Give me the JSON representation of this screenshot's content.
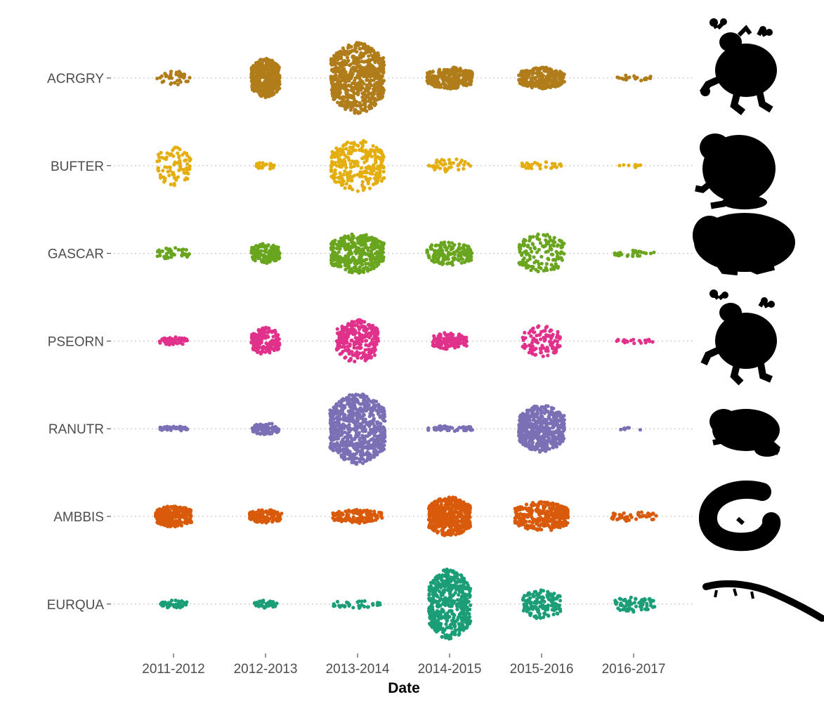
{
  "chart_data": {
    "type": "scatter",
    "subtype": "beeswarm",
    "xlabel": "Date",
    "ylabel": "",
    "title": "",
    "grid": "horizontal dotted guides per species",
    "legend": "none",
    "x_ticks": [
      "2011-2012",
      "2012-2013",
      "2013-2014",
      "2014-2015",
      "2015-2016",
      "2016-2017"
    ],
    "series": [
      {
        "label": "ACRGRY",
        "color": "#b07d1a",
        "icon": "frog-silhouette-icon",
        "clusters": [
          {
            "season": "2011-2012",
            "count": 40,
            "spread": 0.35,
            "width": 0.9
          },
          {
            "season": "2012-2013",
            "count": 420,
            "spread": 1.0,
            "width": 0.75
          },
          {
            "season": "2013-2014",
            "count": 1100,
            "spread": 1.8,
            "width": 1.4
          },
          {
            "season": "2014-2015",
            "count": 300,
            "spread": 0.55,
            "width": 1.2
          },
          {
            "season": "2015-2016",
            "count": 260,
            "spread": 0.55,
            "width": 1.2
          },
          {
            "season": "2016-2017",
            "count": 20,
            "spread": 0.15,
            "width": 0.9
          }
        ]
      },
      {
        "label": "BUFTER",
        "color": "#e4ae0e",
        "icon": "toad-silhouette-icon",
        "clusters": [
          {
            "season": "2011-2012",
            "count": 90,
            "spread": 1.0,
            "width": 0.9
          },
          {
            "season": "2012-2013",
            "count": 20,
            "spread": 0.2,
            "width": 0.5
          },
          {
            "season": "2013-2014",
            "count": 280,
            "spread": 1.3,
            "width": 1.4
          },
          {
            "season": "2014-2015",
            "count": 40,
            "spread": 0.35,
            "width": 1.1
          },
          {
            "season": "2015-2016",
            "count": 30,
            "spread": 0.2,
            "width": 1.1
          },
          {
            "season": "2016-2017",
            "count": 8,
            "spread": 0.1,
            "width": 0.9
          }
        ]
      },
      {
        "label": "GASCAR",
        "color": "#6aa51f",
        "icon": "fat-toad-silhouette-icon",
        "clusters": [
          {
            "season": "2011-2012",
            "count": 40,
            "spread": 0.3,
            "width": 0.9
          },
          {
            "season": "2012-2013",
            "count": 160,
            "spread": 0.5,
            "width": 0.75
          },
          {
            "season": "2013-2014",
            "count": 380,
            "spread": 1.0,
            "width": 1.4
          },
          {
            "season": "2014-2015",
            "count": 160,
            "spread": 0.6,
            "width": 1.2
          },
          {
            "season": "2015-2016",
            "count": 150,
            "spread": 1.0,
            "width": 1.2
          },
          {
            "season": "2016-2017",
            "count": 30,
            "spread": 0.15,
            "width": 1.1
          }
        ]
      },
      {
        "label": "PSEORN",
        "color": "#e0318b",
        "icon": "treefrog-silhouette-icon",
        "clusters": [
          {
            "season": "2011-2012",
            "count": 60,
            "spread": 0.2,
            "width": 0.75
          },
          {
            "season": "2012-2013",
            "count": 170,
            "spread": 0.7,
            "width": 0.75
          },
          {
            "season": "2013-2014",
            "count": 280,
            "spread": 1.1,
            "width": 1.1
          },
          {
            "season": "2014-2015",
            "count": 130,
            "spread": 0.45,
            "width": 0.9
          },
          {
            "season": "2015-2016",
            "count": 110,
            "spread": 0.8,
            "width": 1.0
          },
          {
            "season": "2016-2017",
            "count": 20,
            "spread": 0.12,
            "width": 1.0
          }
        ]
      },
      {
        "label": "RANUTR",
        "color": "#7b70b5",
        "icon": "ranid-frog-silhouette-icon",
        "clusters": [
          {
            "season": "2011-2012",
            "count": 40,
            "spread": 0.12,
            "width": 0.75
          },
          {
            "season": "2012-2013",
            "count": 90,
            "spread": 0.3,
            "width": 0.7
          },
          {
            "season": "2013-2014",
            "count": 1100,
            "spread": 1.8,
            "width": 1.45
          },
          {
            "season": "2014-2015",
            "count": 50,
            "spread": 0.15,
            "width": 1.2
          },
          {
            "season": "2015-2016",
            "count": 520,
            "spread": 1.2,
            "width": 1.2
          },
          {
            "season": "2016-2017",
            "count": 8,
            "spread": 0.07,
            "width": 0.9
          }
        ]
      },
      {
        "label": "AMBBIS",
        "color": "#d85a0a",
        "icon": "salamander-silhouette-icon",
        "clusters": [
          {
            "season": "2011-2012",
            "count": 260,
            "spread": 0.55,
            "width": 0.95
          },
          {
            "season": "2012-2013",
            "count": 130,
            "spread": 0.35,
            "width": 0.85
          },
          {
            "season": "2013-2014",
            "count": 130,
            "spread": 0.35,
            "width": 1.3
          },
          {
            "season": "2014-2015",
            "count": 460,
            "spread": 1.0,
            "width": 1.1
          },
          {
            "season": "2015-2016",
            "count": 330,
            "spread": 0.75,
            "width": 1.4
          },
          {
            "season": "2016-2017",
            "count": 45,
            "spread": 0.25,
            "width": 1.2
          }
        ]
      },
      {
        "label": "EURQUA",
        "color": "#1b9e77",
        "icon": "newt-silhouette-icon",
        "clusters": [
          {
            "season": "2011-2012",
            "count": 40,
            "spread": 0.2,
            "width": 0.7
          },
          {
            "season": "2012-2013",
            "count": 40,
            "spread": 0.2,
            "width": 0.6
          },
          {
            "season": "2013-2014",
            "count": 35,
            "spread": 0.2,
            "width": 1.3
          },
          {
            "season": "2014-2015",
            "count": 520,
            "spread": 1.8,
            "width": 1.1
          },
          {
            "season": "2015-2016",
            "count": 150,
            "spread": 0.75,
            "width": 1.0
          },
          {
            "season": "2016-2017",
            "count": 65,
            "spread": 0.4,
            "width": 1.1
          }
        ]
      }
    ]
  }
}
